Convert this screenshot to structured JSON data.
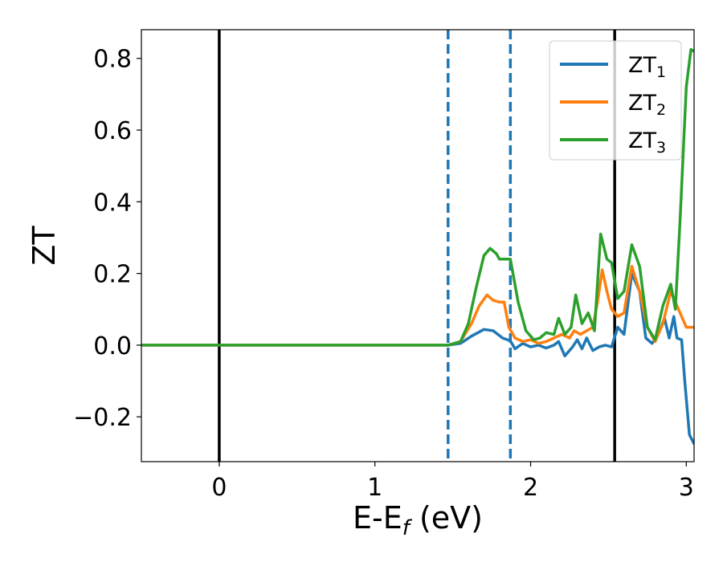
{
  "chart_data": {
    "type": "line",
    "xlabel": "E-E",
    "xlabel_sub": "f",
    "xlabel_unit": " (eV)",
    "ylabel": "ZT",
    "xlim": [
      -0.5,
      3.05
    ],
    "ylim": [
      -0.325,
      0.88
    ],
    "xticks": [
      0,
      1,
      2,
      3
    ],
    "xtick_labels": [
      "0",
      "1",
      "2",
      "3"
    ],
    "yticks": [
      -0.2,
      0.0,
      0.2,
      0.4,
      0.6,
      0.8
    ],
    "ytick_labels": [
      "−0.2",
      "0.0",
      "0.2",
      "0.4",
      "0.6",
      "0.8"
    ],
    "grid": false,
    "legend_position": "top-right",
    "vertical_lines": [
      {
        "x": 0.0,
        "style": "solid",
        "color": "#000000"
      },
      {
        "x": 1.47,
        "style": "dashed",
        "color": "#1f77b4"
      },
      {
        "x": 1.87,
        "style": "dashed",
        "color": "#1f77b4"
      },
      {
        "x": 2.54,
        "style": "solid",
        "color": "#000000"
      }
    ],
    "series": [
      {
        "name": "ZT",
        "name_sub": "1",
        "color": "#1f77b4",
        "points": [
          [
            -0.5,
            0.0
          ],
          [
            1.47,
            0.0
          ],
          [
            1.55,
            0.005
          ],
          [
            1.62,
            0.025
          ],
          [
            1.7,
            0.044
          ],
          [
            1.76,
            0.04
          ],
          [
            1.82,
            0.02
          ],
          [
            1.87,
            0.012
          ],
          [
            1.9,
            -0.01
          ],
          [
            1.95,
            0.005
          ],
          [
            2.0,
            -0.005
          ],
          [
            2.05,
            0.0
          ],
          [
            2.1,
            -0.008
          ],
          [
            2.15,
            0.0
          ],
          [
            2.18,
            0.01
          ],
          [
            2.22,
            -0.03
          ],
          [
            2.27,
            -0.005
          ],
          [
            2.3,
            0.015
          ],
          [
            2.33,
            -0.01
          ],
          [
            2.36,
            0.02
          ],
          [
            2.4,
            -0.015
          ],
          [
            2.44,
            -0.005
          ],
          [
            2.48,
            0.0
          ],
          [
            2.52,
            -0.005
          ],
          [
            2.56,
            0.05
          ],
          [
            2.6,
            0.03
          ],
          [
            2.65,
            0.2
          ],
          [
            2.7,
            0.15
          ],
          [
            2.74,
            0.02
          ],
          [
            2.78,
            0.005
          ],
          [
            2.82,
            0.03
          ],
          [
            2.86,
            0.075
          ],
          [
            2.89,
            0.02
          ],
          [
            2.92,
            0.08
          ],
          [
            2.94,
            0.02
          ],
          [
            2.97,
            0.015
          ],
          [
            2.99,
            -0.1
          ],
          [
            3.02,
            -0.25
          ],
          [
            3.05,
            -0.275
          ]
        ]
      },
      {
        "name": "ZT",
        "name_sub": "2",
        "color": "#ff7f0e",
        "points": [
          [
            -0.5,
            0.0
          ],
          [
            1.47,
            0.0
          ],
          [
            1.55,
            0.01
          ],
          [
            1.62,
            0.06
          ],
          [
            1.67,
            0.11
          ],
          [
            1.72,
            0.14
          ],
          [
            1.76,
            0.125
          ],
          [
            1.8,
            0.12
          ],
          [
            1.83,
            0.12
          ],
          [
            1.86,
            0.05
          ],
          [
            1.9,
            0.02
          ],
          [
            1.95,
            0.01
          ],
          [
            2.0,
            0.015
          ],
          [
            2.05,
            0.005
          ],
          [
            2.1,
            0.01
          ],
          [
            2.15,
            0.02
          ],
          [
            2.2,
            0.03
          ],
          [
            2.25,
            0.02
          ],
          [
            2.28,
            0.04
          ],
          [
            2.32,
            0.03
          ],
          [
            2.36,
            0.04
          ],
          [
            2.4,
            0.05
          ],
          [
            2.43,
            0.12
          ],
          [
            2.46,
            0.21
          ],
          [
            2.49,
            0.15
          ],
          [
            2.52,
            0.1
          ],
          [
            2.56,
            0.08
          ],
          [
            2.6,
            0.09
          ],
          [
            2.65,
            0.22
          ],
          [
            2.7,
            0.15
          ],
          [
            2.75,
            0.05
          ],
          [
            2.8,
            0.01
          ],
          [
            2.85,
            0.06
          ],
          [
            2.9,
            0.15
          ],
          [
            2.95,
            0.1
          ],
          [
            3.0,
            0.05
          ],
          [
            3.05,
            0.05
          ]
        ]
      },
      {
        "name": "ZT",
        "name_sub": "3",
        "color": "#2ca02c",
        "points": [
          [
            -0.5,
            0.0
          ],
          [
            1.47,
            0.0
          ],
          [
            1.55,
            0.01
          ],
          [
            1.6,
            0.06
          ],
          [
            1.65,
            0.16
          ],
          [
            1.7,
            0.25
          ],
          [
            1.74,
            0.27
          ],
          [
            1.78,
            0.255
          ],
          [
            1.8,
            0.24
          ],
          [
            1.84,
            0.24
          ],
          [
            1.87,
            0.24
          ],
          [
            1.92,
            0.12
          ],
          [
            1.97,
            0.04
          ],
          [
            2.02,
            0.015
          ],
          [
            2.06,
            0.02
          ],
          [
            2.1,
            0.035
          ],
          [
            2.15,
            0.03
          ],
          [
            2.18,
            0.075
          ],
          [
            2.22,
            0.03
          ],
          [
            2.26,
            0.05
          ],
          [
            2.29,
            0.14
          ],
          [
            2.33,
            0.06
          ],
          [
            2.37,
            0.09
          ],
          [
            2.41,
            0.04
          ],
          [
            2.45,
            0.31
          ],
          [
            2.49,
            0.24
          ],
          [
            2.52,
            0.23
          ],
          [
            2.56,
            0.13
          ],
          [
            2.6,
            0.15
          ],
          [
            2.65,
            0.28
          ],
          [
            2.7,
            0.22
          ],
          [
            2.75,
            0.05
          ],
          [
            2.8,
            0.015
          ],
          [
            2.85,
            0.11
          ],
          [
            2.9,
            0.17
          ],
          [
            2.93,
            0.1
          ],
          [
            2.96,
            0.35
          ],
          [
            3.0,
            0.72
          ],
          [
            3.03,
            0.825
          ],
          [
            3.05,
            0.82
          ]
        ]
      }
    ]
  }
}
